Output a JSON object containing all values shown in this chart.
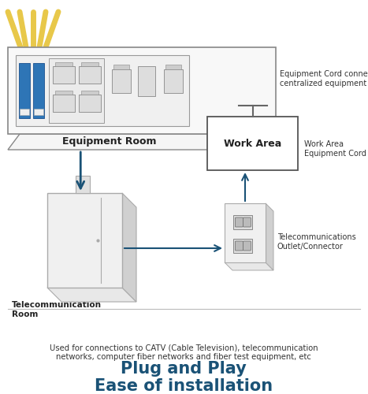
{
  "title_line1": "Ease of installation",
  "title_line2": "Plug and Play",
  "subtitle": "Used for connections to CATV (Cable Television), telecommunication\nnetworks, computer fiber networks and fiber test equipment, etc",
  "title_color": "#1a5276",
  "subtitle_color": "#333333",
  "arrow_color": "#1a5276",
  "bg_color": "#ffffff",
  "label_telecom_room": "Telecommunication\nRoom",
  "label_outlet": "Telecommunications\nOutlet/Connector",
  "label_work_area": "Work Area",
  "label_work_area_cord": "Work Area\nEquipment Cord",
  "label_equipment_room": "Equipment Room",
  "label_equip_cord": "Equipment Cord connected to\ncentralized equipment",
  "blue_connector_color": "#2e75b6",
  "yellow_cable_color": "#e8c84a"
}
